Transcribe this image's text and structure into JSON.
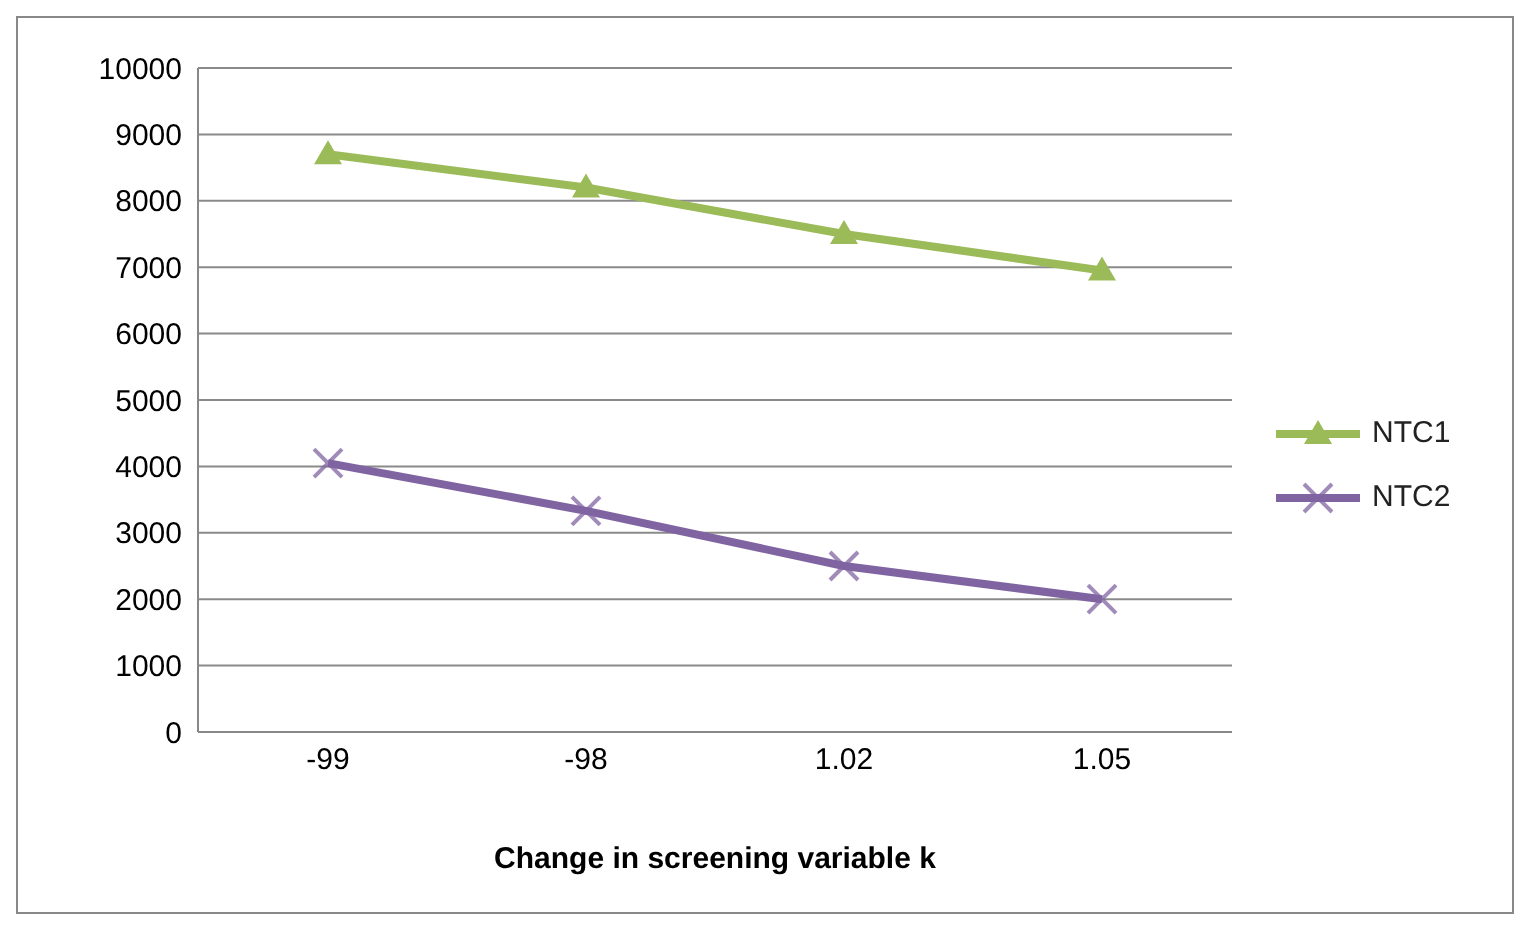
{
  "chart_data": {
    "type": "line",
    "xlabel": "Change in screening variable k",
    "categories": [
      "-99",
      "-98",
      "1.02",
      "1.05"
    ],
    "series": [
      {
        "name": "NTC1",
        "color": "#9bbb59",
        "marker": "triangle",
        "values": [
          8700,
          8200,
          7500,
          6950
        ]
      },
      {
        "name": "NTC2",
        "color": "#8064a2",
        "marker": "cross",
        "values": [
          4050,
          3330,
          2500,
          2000
        ]
      }
    ],
    "ylim": [
      0,
      10000
    ],
    "yticks": [
      0,
      1000,
      2000,
      3000,
      4000,
      5000,
      6000,
      7000,
      8000,
      9000,
      10000
    ],
    "grid": "y",
    "legend": "right"
  }
}
